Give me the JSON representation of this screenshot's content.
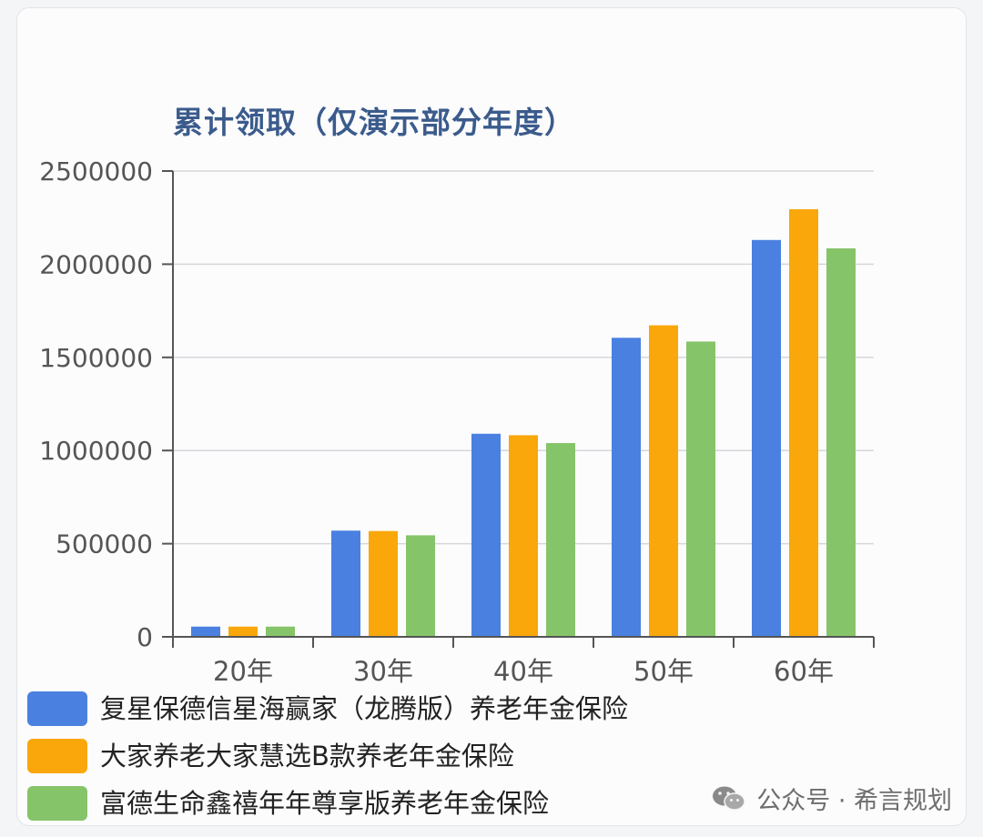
{
  "chart_data": {
    "type": "bar",
    "title": "累计领取（仅演示部分年度）",
    "categories": [
      "20年",
      "30年",
      "40年",
      "50年",
      "60年"
    ],
    "series": [
      {
        "name": "复星保德信星海赢家（龙腾版）养老年金保险",
        "color": "#4a80e0",
        "values": [
          55000,
          570000,
          1090000,
          1605000,
          2130000
        ]
      },
      {
        "name": "大家养老大家慧选B款养老年金保险",
        "color": "#f9a70a",
        "values": [
          55000,
          568000,
          1082000,
          1672000,
          2295000
        ]
      },
      {
        "name": "富德生命鑫禧年年尊享版养老年金保险",
        "color": "#86c46a",
        "values": [
          55000,
          545000,
          1040000,
          1585000,
          2085000
        ]
      }
    ],
    "ylim": [
      0,
      2500000
    ],
    "yticks": [
      "0",
      "500000",
      "1000000",
      "1500000",
      "2000000",
      "2500000"
    ],
    "grid": true,
    "legend_position": "bottom-left"
  },
  "watermark": {
    "text": "公众号 · 希言规划",
    "icon": "wechat-icon"
  }
}
